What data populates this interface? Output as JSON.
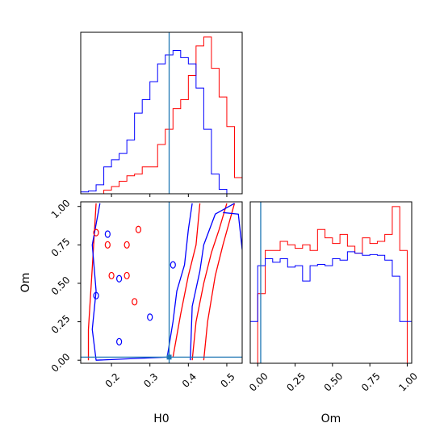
{
  "colors": {
    "series_a": "#ff0000",
    "series_b": "#0000ff",
    "truth": "#1f77b4",
    "frame": "#000000"
  },
  "chart_data": [
    {
      "type": "histogram",
      "panel": "H0-marginal",
      "xlim": [
        0.12,
        0.54
      ],
      "bin_edges": [
        0.12,
        0.14,
        0.16,
        0.18,
        0.2,
        0.22,
        0.24,
        0.26,
        0.28,
        0.3,
        0.32,
        0.34,
        0.36,
        0.38,
        0.4,
        0.42,
        0.44,
        0.46,
        0.48,
        0.5,
        0.52,
        0.54
      ],
      "series": [
        {
          "color": "red",
          "counts": [
            0,
            0,
            0,
            4,
            8,
            14,
            20,
            22,
            30,
            30,
            55,
            72,
            95,
            105,
            132,
            165,
            175,
            140,
            108,
            75,
            18
          ]
        },
        {
          "color": "blue",
          "counts": [
            2,
            3,
            10,
            30,
            38,
            45,
            60,
            90,
            105,
            125,
            145,
            155,
            160,
            152,
            145,
            118,
            72,
            22,
            5,
            0,
            0
          ]
        }
      ],
      "truth": 0.35
    },
    {
      "type": "contour",
      "panel": "H0-Om-joint",
      "xlabel": "H0",
      "ylabel": "Om",
      "xlim": [
        0.12,
        0.54
      ],
      "ylim": [
        -0.02,
        1.03
      ],
      "xticks": [
        "0.2",
        "0.3",
        "0.4",
        "0.5"
      ],
      "yticks": [
        "0.00",
        "0.25",
        "0.50",
        "0.75",
        "1.00"
      ],
      "truth": {
        "x": 0.35,
        "y": 0.02
      },
      "contours": [
        {
          "color": "red",
          "points": [
            [
              0.44,
              0.0
            ],
            [
              0.45,
              0.25
            ],
            [
              0.47,
              0.55
            ],
            [
              0.49,
              0.75
            ],
            [
              0.52,
              1.02
            ]
          ]
        },
        {
          "color": "red",
          "points": [
            [
              0.41,
              0.0
            ],
            [
              0.42,
              0.25
            ],
            [
              0.44,
              0.5
            ],
            [
              0.46,
              0.7
            ],
            [
              0.48,
              0.85
            ],
            [
              0.5,
              1.02
            ]
          ]
        },
        {
          "color": "red",
          "points": [
            [
              0.36,
              0.02
            ],
            [
              0.38,
              0.3
            ],
            [
              0.4,
              0.55
            ],
            [
              0.42,
              0.75
            ],
            [
              0.43,
              1.02
            ]
          ]
        },
        {
          "color": "red",
          "points": [
            [
              0.16,
              1.02
            ],
            [
              0.15,
              0.6
            ],
            [
              0.14,
              0.2
            ],
            [
              0.14,
              0.0
            ]
          ]
        },
        {
          "color": "blue",
          "points": [
            [
              0.405,
              0.0
            ],
            [
              0.41,
              0.35
            ],
            [
              0.43,
              0.58
            ],
            [
              0.44,
              0.75
            ],
            [
              0.47,
              0.95
            ],
            [
              0.52,
              1.02
            ]
          ]
        },
        {
          "color": "blue",
          "points": [
            [
              0.345,
              0.02
            ],
            [
              0.36,
              0.25
            ],
            [
              0.37,
              0.45
            ],
            [
              0.39,
              0.62
            ],
            [
              0.4,
              0.85
            ],
            [
              0.41,
              1.02
            ]
          ]
        },
        {
          "color": "blue",
          "points": [
            [
              0.17,
              1.02
            ],
            [
              0.15,
              0.75
            ],
            [
              0.16,
              0.45
            ],
            [
              0.15,
              0.2
            ],
            [
              0.16,
              0.0
            ],
            [
              0.345,
              0.02
            ]
          ]
        },
        {
          "color": "blue",
          "points": [
            [
              0.49,
              0.96
            ],
            [
              0.53,
              0.95
            ],
            [
              0.54,
              0.72
            ]
          ]
        }
      ],
      "blobs": [
        {
          "color": "red",
          "x": 0.19,
          "y": 0.75
        },
        {
          "color": "red",
          "x": 0.24,
          "y": 0.75
        },
        {
          "color": "red",
          "x": 0.27,
          "y": 0.85
        },
        {
          "color": "red",
          "x": 0.16,
          "y": 0.83
        },
        {
          "color": "red",
          "x": 0.24,
          "y": 0.55
        },
        {
          "color": "red",
          "x": 0.26,
          "y": 0.38
        },
        {
          "color": "red",
          "x": 0.2,
          "y": 0.55
        },
        {
          "color": "blue",
          "x": 0.16,
          "y": 0.42
        },
        {
          "color": "blue",
          "x": 0.19,
          "y": 0.82
        },
        {
          "color": "blue",
          "x": 0.22,
          "y": 0.53
        },
        {
          "color": "blue",
          "x": 0.3,
          "y": 0.28
        },
        {
          "color": "blue",
          "x": 0.36,
          "y": 0.62
        },
        {
          "color": "blue",
          "x": 0.22,
          "y": 0.12
        }
      ]
    },
    {
      "type": "histogram",
      "panel": "Om-marginal",
      "xlabel": "Om",
      "xlim": [
        -0.05,
        1.03
      ],
      "xticks": [
        "0.00",
        "0.25",
        "0.50",
        "0.75",
        "1.00"
      ],
      "bin_edges": [
        -0.05,
        0.0,
        0.05,
        0.1,
        0.15,
        0.2,
        0.25,
        0.3,
        0.35,
        0.4,
        0.45,
        0.5,
        0.55,
        0.6,
        0.65,
        0.7,
        0.75,
        0.8,
        0.85,
        0.9,
        0.95,
        1.0,
        1.03
      ],
      "series": [
        {
          "color": "red",
          "counts": [
            0,
            100,
            162,
            162,
            175,
            170,
            165,
            170,
            162,
            192,
            180,
            172,
            185,
            168,
            158,
            180,
            172,
            175,
            185,
            225,
            162,
            0
          ]
        },
        {
          "color": "blue",
          "counts": [
            60,
            140,
            150,
            145,
            150,
            138,
            140,
            118,
            140,
            142,
            140,
            150,
            148,
            160,
            158,
            155,
            156,
            155,
            148,
            125,
            60,
            60
          ]
        }
      ],
      "truth": 0.02
    }
  ],
  "labels": {
    "h0": "H0",
    "om": "Om"
  }
}
